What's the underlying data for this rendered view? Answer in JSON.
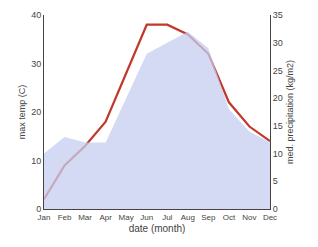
{
  "chart_data": {
    "type": "line",
    "xlabel": "date (month)",
    "ylabel": "max temp (C)",
    "y2label": "med. precipitation (kg/m2)",
    "categories": [
      "Jan",
      "Feb",
      "Mar",
      "Apr",
      "May",
      "Jun",
      "Jul",
      "Aug",
      "Sep",
      "Oct",
      "Nov",
      "Dec"
    ],
    "series": [
      {
        "type": "area",
        "axis": "y2",
        "color": "#c5cef0",
        "values": [
          10,
          13,
          12,
          12,
          20,
          28,
          30,
          32,
          29,
          18,
          14,
          12
        ]
      },
      {
        "type": "line",
        "color": "#c0392b",
        "values": [
          2,
          9,
          13,
          18,
          28,
          38,
          38,
          36,
          32,
          22,
          17,
          14
        ]
      }
    ],
    "ylim": [
      0,
      40
    ],
    "yticks": [
      0,
      10,
      20,
      30,
      40
    ],
    "y2lim": [
      0,
      35
    ],
    "y2ticks": [
      0,
      5,
      10,
      15,
      20,
      25,
      30,
      35
    ],
    "grid": false
  }
}
